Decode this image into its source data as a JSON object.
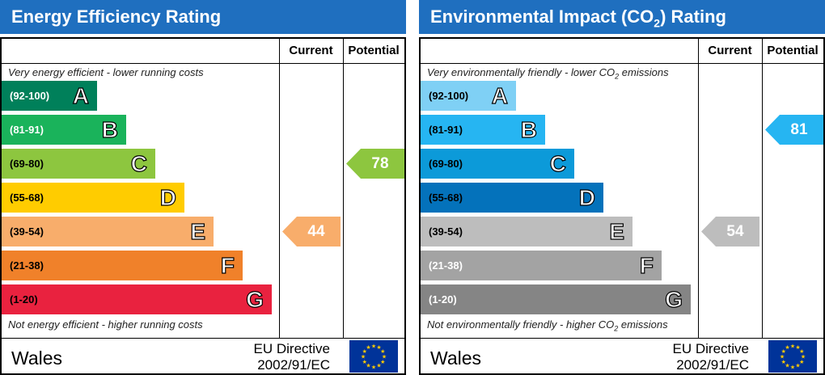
{
  "chart_data": [
    {
      "type": "bar",
      "title": "Energy Efficiency Rating",
      "columns": [
        "Current",
        "Potential"
      ],
      "top_caption": "Very energy efficient - lower running costs",
      "bottom_caption": "Not energy efficient - higher running costs",
      "categories": [
        "A",
        "B",
        "C",
        "D",
        "E",
        "F",
        "G"
      ],
      "ranges": [
        "(92-100)",
        "(81-91)",
        "(69-80)",
        "(55-68)",
        "(39-54)",
        "(21-38)",
        "(1-20)"
      ],
      "colors": [
        "#00805a",
        "#1ab35b",
        "#8dc63f",
        "#ffcc00",
        "#f8ad6b",
        "#f0812a",
        "#e9223f"
      ],
      "range_text_colors": [
        "#ffffff",
        "#ffffff",
        "#000000",
        "#000000",
        "#000000",
        "#000000",
        "#000000"
      ],
      "current": {
        "value": 44,
        "band": "E",
        "color": "#f8ad6b"
      },
      "potential": {
        "value": 78,
        "band": "C",
        "color": "#8dc63f"
      },
      "footer": {
        "region": "Wales",
        "directive_line1": "EU Directive",
        "directive_line2": "2002/91/EC"
      }
    },
    {
      "type": "bar",
      "title": "Environmental Impact (CO2) Rating",
      "columns": [
        "Current",
        "Potential"
      ],
      "top_caption": "Very environmentally friendly - lower CO2 emissions",
      "bottom_caption": "Not environmentally friendly - higher CO2 emissions",
      "categories": [
        "A",
        "B",
        "C",
        "D",
        "E",
        "F",
        "G"
      ],
      "ranges": [
        "(92-100)",
        "(81-91)",
        "(69-80)",
        "(55-68)",
        "(39-54)",
        "(21-38)",
        "(1-20)"
      ],
      "colors": [
        "#7fd0f5",
        "#26b5f2",
        "#0c9ad9",
        "#0472bb",
        "#bdbdbd",
        "#a3a3a3",
        "#858585"
      ],
      "range_text_colors": [
        "#000000",
        "#000000",
        "#000000",
        "#000000",
        "#000000",
        "#ffffff",
        "#ffffff"
      ],
      "current": {
        "value": 54,
        "band": "E",
        "color": "#bdbdbd"
      },
      "potential": {
        "value": 81,
        "band": "B",
        "color": "#26b5f2"
      },
      "footer": {
        "region": "Wales",
        "directive_line1": "EU Directive",
        "directive_line2": "2002/91/EC"
      }
    }
  ]
}
